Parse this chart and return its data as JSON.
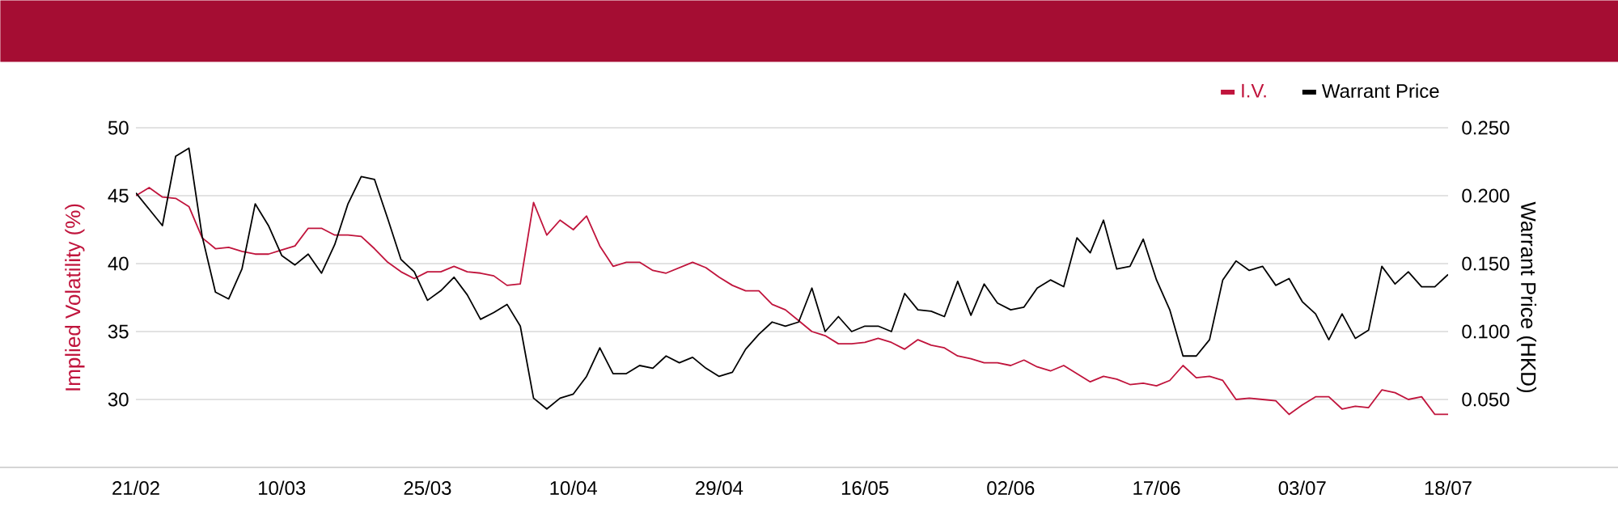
{
  "chart_data": {
    "type": "line",
    "categories": [
      "21/02",
      null,
      null,
      null,
      null,
      null,
      null,
      null,
      null,
      null,
      null,
      "10/03",
      null,
      null,
      null,
      null,
      null,
      null,
      null,
      null,
      null,
      null,
      "25/03",
      null,
      null,
      null,
      null,
      null,
      null,
      null,
      null,
      null,
      null,
      "10/04",
      null,
      null,
      null,
      null,
      null,
      null,
      null,
      null,
      null,
      null,
      "29/04",
      null,
      null,
      null,
      null,
      null,
      null,
      null,
      null,
      null,
      null,
      "16/05",
      null,
      null,
      null,
      null,
      null,
      null,
      null,
      null,
      null,
      null,
      "02/06",
      null,
      null,
      null,
      null,
      null,
      null,
      null,
      null,
      null,
      null,
      "17/06",
      null,
      null,
      null,
      null,
      null,
      null,
      null,
      null,
      null,
      null,
      "03/07",
      null,
      null,
      null,
      null,
      null,
      null,
      null,
      null,
      null,
      null,
      "18/07"
    ],
    "ylabel": "Implied Volatility (%)",
    "y2label": "Warrant Price (HKD)",
    "ylim": [
      25,
      50
    ],
    "yticks": [
      30,
      35,
      40,
      45,
      50
    ],
    "y2lim": [
      0,
      0.25
    ],
    "y2ticks": [
      {
        "value": 0.05,
        "label": "0.050"
      },
      {
        "value": 0.1,
        "label": "0.100"
      },
      {
        "value": 0.15,
        "label": "0.150"
      },
      {
        "value": 0.2,
        "label": "0.200"
      },
      {
        "value": 0.25,
        "label": "0.250"
      }
    ],
    "grid": "y",
    "legend": "top right",
    "series": [
      {
        "name": "I.V.",
        "color": "#c0143c",
        "values": [
          45.0,
          45.6,
          44.9,
          44.8,
          44.2,
          41.9,
          41.1,
          41.2,
          40.9,
          40.7,
          40.7,
          41.0,
          41.3,
          42.6,
          42.6,
          42.1,
          42.1,
          42.0,
          41.1,
          40.1,
          39.4,
          38.9,
          39.4,
          39.4,
          39.8,
          39.4,
          39.3,
          39.1,
          38.4,
          38.5,
          44.5,
          42.1,
          43.2,
          42.5,
          43.5,
          41.3,
          39.8,
          40.1,
          40.1,
          39.5,
          39.3,
          39.7,
          40.1,
          39.7,
          39.0,
          38.4,
          38.0,
          38.0,
          37.0,
          36.6,
          35.8,
          35.0,
          34.7,
          34.1,
          34.1,
          34.2,
          34.5,
          34.2,
          33.7,
          34.4,
          34.0,
          33.8,
          33.2,
          33.0,
          32.7,
          32.7,
          32.5,
          32.9,
          32.4,
          32.1,
          32.5,
          31.9,
          31.3,
          31.7,
          31.5,
          31.1,
          31.2,
          31.0,
          31.4,
          32.5,
          31.6,
          31.7,
          31.4,
          30.0,
          30.1,
          30.0,
          29.9,
          28.9,
          29.6,
          30.2,
          30.2,
          29.3,
          29.5,
          29.4,
          30.7,
          30.5,
          30.0,
          30.2,
          28.9,
          28.9
        ]
      },
      {
        "name": "Warrant Price",
        "color": "#000000",
        "axis": "y2",
        "values": [
          0.202,
          0.19,
          0.178,
          0.229,
          0.235,
          0.17,
          0.129,
          0.124,
          0.146,
          0.194,
          0.178,
          0.156,
          0.149,
          0.157,
          0.143,
          0.164,
          0.194,
          0.214,
          0.212,
          0.183,
          0.153,
          0.144,
          0.123,
          0.13,
          0.14,
          0.127,
          0.109,
          0.114,
          0.12,
          0.104,
          0.051,
          0.043,
          0.051,
          0.054,
          0.067,
          0.088,
          0.069,
          0.069,
          0.075,
          0.073,
          0.082,
          0.077,
          0.081,
          0.073,
          0.067,
          0.07,
          0.087,
          0.098,
          0.107,
          0.104,
          0.107,
          0.132,
          0.1,
          0.111,
          0.1,
          0.104,
          0.104,
          0.1,
          0.128,
          0.116,
          0.115,
          0.111,
          0.137,
          0.112,
          0.135,
          0.121,
          0.116,
          0.118,
          0.132,
          0.138,
          0.133,
          0.169,
          0.158,
          0.182,
          0.146,
          0.148,
          0.168,
          0.138,
          0.116,
          0.082,
          0.082,
          0.094,
          0.138,
          0.152,
          0.145,
          0.148,
          0.134,
          0.139,
          0.122,
          0.113,
          0.094,
          0.113,
          0.095,
          0.101,
          0.148,
          0.135,
          0.144,
          0.133,
          0.133,
          0.142
        ]
      }
    ]
  }
}
